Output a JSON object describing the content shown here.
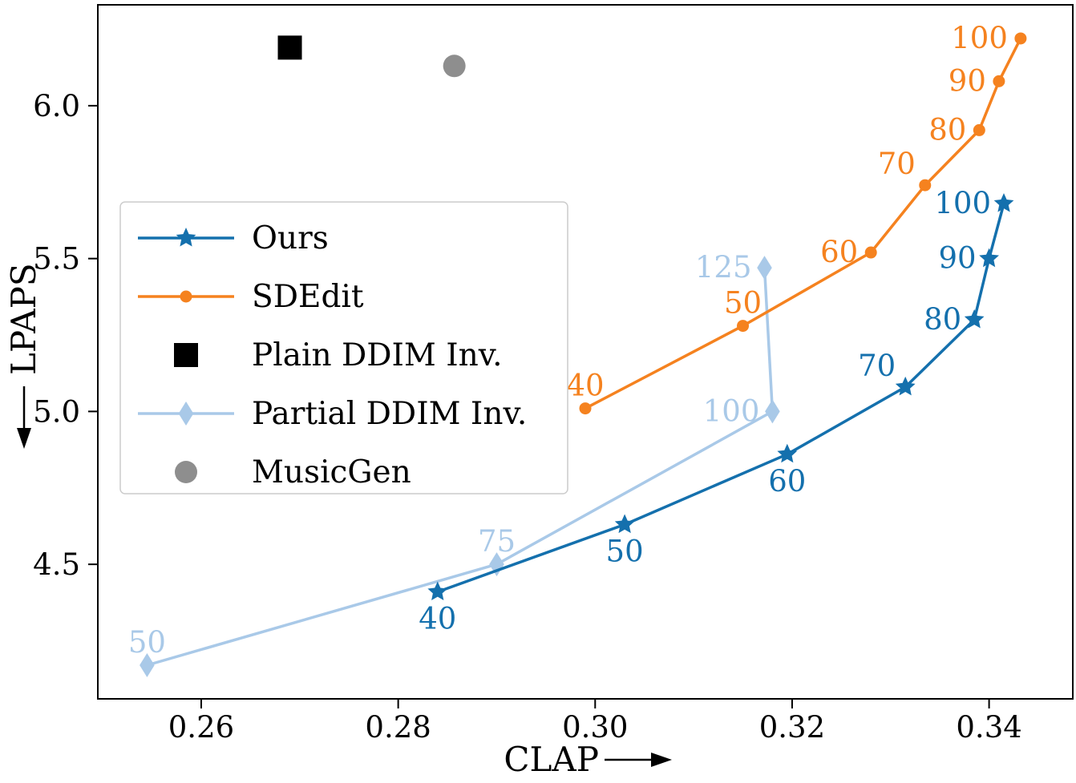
{
  "figure": {
    "background": "#ffffff",
    "text_color": "#000000"
  },
  "chart_data": {
    "type": "line",
    "title": "",
    "xlabel": "CLAP⟶",
    "ylabel": "⟵LPAPS",
    "xlim": [
      0.2495,
      0.3485
    ],
    "ylim": [
      4.06,
      6.33
    ],
    "xticks": [
      0.26,
      0.28,
      0.3,
      0.32,
      0.34
    ],
    "xtick_labels": [
      "0.26",
      "0.28",
      "0.30",
      "0.32",
      "0.34"
    ],
    "yticks": [
      4.5,
      5.0,
      5.5,
      6.0
    ],
    "ytick_labels": [
      "4.5",
      "5.0",
      "5.5",
      "6.0"
    ],
    "grid": false,
    "legend_position": "upper left",
    "series": [
      {
        "name": "Ours",
        "color": "#1470ad",
        "marker": "star",
        "marker_size": 13,
        "line": true,
        "zorder": 4,
        "points": [
          {
            "x": 0.284,
            "y": 4.41,
            "label": "40",
            "label_pos": "below"
          },
          {
            "x": 0.303,
            "y": 4.63,
            "label": "50",
            "label_pos": "below"
          },
          {
            "x": 0.3195,
            "y": 4.86,
            "label": "60",
            "label_pos": "below"
          },
          {
            "x": 0.3315,
            "y": 5.08,
            "label": "70",
            "label_pos": "above-left"
          },
          {
            "x": 0.3385,
            "y": 5.3,
            "label": "80",
            "label_pos": "left"
          },
          {
            "x": 0.34,
            "y": 5.5,
            "label": "90",
            "label_pos": "left"
          },
          {
            "x": 0.3415,
            "y": 5.68,
            "label": "100",
            "label_pos": "left"
          }
        ]
      },
      {
        "name": "SDEdit",
        "color": "#f5821f",
        "marker": "circle",
        "marker_size": 7.5,
        "line": true,
        "zorder": 3,
        "points": [
          {
            "x": 0.299,
            "y": 5.01,
            "label": "40",
            "label_pos": "above"
          },
          {
            "x": 0.315,
            "y": 5.28,
            "label": "50",
            "label_pos": "above"
          },
          {
            "x": 0.328,
            "y": 5.52,
            "label": "60",
            "label_pos": "left"
          },
          {
            "x": 0.3335,
            "y": 5.74,
            "label": "70",
            "label_pos": "above-left"
          },
          {
            "x": 0.339,
            "y": 5.92,
            "label": "80",
            "label_pos": "left"
          },
          {
            "x": 0.341,
            "y": 6.08,
            "label": "90",
            "label_pos": "left"
          },
          {
            "x": 0.3432,
            "y": 6.22,
            "label": "100",
            "label_pos": "left"
          }
        ]
      },
      {
        "name": "Plain DDIM Inv.",
        "color": "#000000",
        "marker": "square",
        "marker_size": 15,
        "line": false,
        "zorder": 5,
        "points": [
          {
            "x": 0.269,
            "y": 6.19,
            "label": null,
            "label_pos": null
          }
        ]
      },
      {
        "name": "Partial DDIM Inv.",
        "color": "#a9c9e8",
        "marker": "diamond",
        "marker_size": 15,
        "line": true,
        "zorder": 2,
        "points": [
          {
            "x": 0.2545,
            "y": 4.17,
            "label": "50",
            "label_pos": "above"
          },
          {
            "x": 0.29,
            "y": 4.5,
            "label": "75",
            "label_pos": "above"
          },
          {
            "x": 0.318,
            "y": 5.0,
            "label": "100",
            "label_pos": "left"
          },
          {
            "x": 0.3172,
            "y": 5.47,
            "label": "125",
            "label_pos": "left"
          }
        ]
      },
      {
        "name": "MusicGen",
        "color": "#8e8e8e",
        "marker": "circle",
        "marker_size": 14,
        "line": false,
        "zorder": 5,
        "points": [
          {
            "x": 0.2857,
            "y": 6.13,
            "label": null,
            "label_pos": null
          }
        ]
      }
    ],
    "legend_entries": [
      "Ours",
      "SDEdit",
      "Plain DDIM Inv.",
      "Partial DDIM Inv.",
      "MusicGen"
    ]
  }
}
